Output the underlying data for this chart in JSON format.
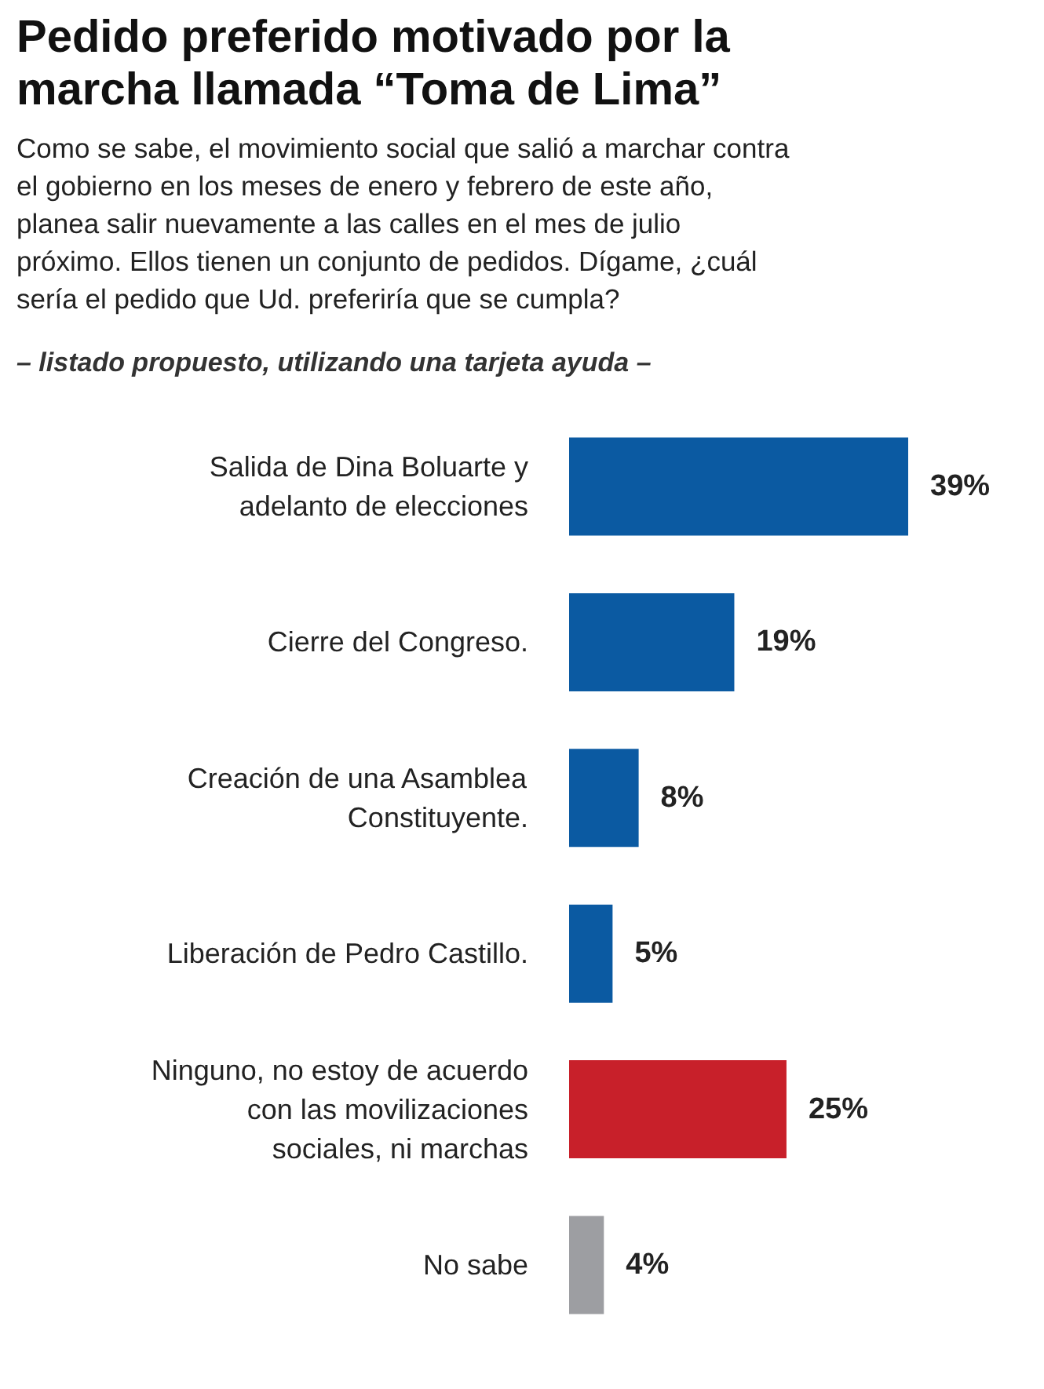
{
  "chart_data": {
    "type": "bar",
    "orientation": "horizontal",
    "title": "Pedido preferido motivado por la marcha llamada “Toma de Lima”",
    "subtitle": "Como se sabe, el movimiento social que salió a marchar contra el gobierno en los meses de enero y febrero de este año, planea salir nuevamente a las calles en el mes de julio próximo. Ellos tienen un conjunto de pedidos. Dígame, ¿cuál sería el pedido que Ud. preferiría que se cumpla?",
    "annotations": [
      "– listado propuesto, utilizando una tarjeta ayuda –"
    ],
    "categories": [
      "Salida de Dina Boluarte y adelanto de elecciones",
      "Cierre del Congreso.",
      "Creación de una Asamblea Constituyente.",
      "Liberación de Pedro Castillo.",
      "Ninguno, no estoy de acuerdo con las movilizaciones sociales, ni marchas",
      "No sabe"
    ],
    "values": [
      39,
      19,
      8,
      5,
      25,
      4
    ],
    "value_labels": [
      "39%",
      "19%",
      "8%",
      "5%",
      "25%",
      "4%"
    ],
    "colors": [
      "#0b5aa2",
      "#0b5aa2",
      "#0b5aa2",
      "#0b5aa2",
      "#c8202a",
      "#9d9ea2"
    ],
    "grid": false
  }
}
